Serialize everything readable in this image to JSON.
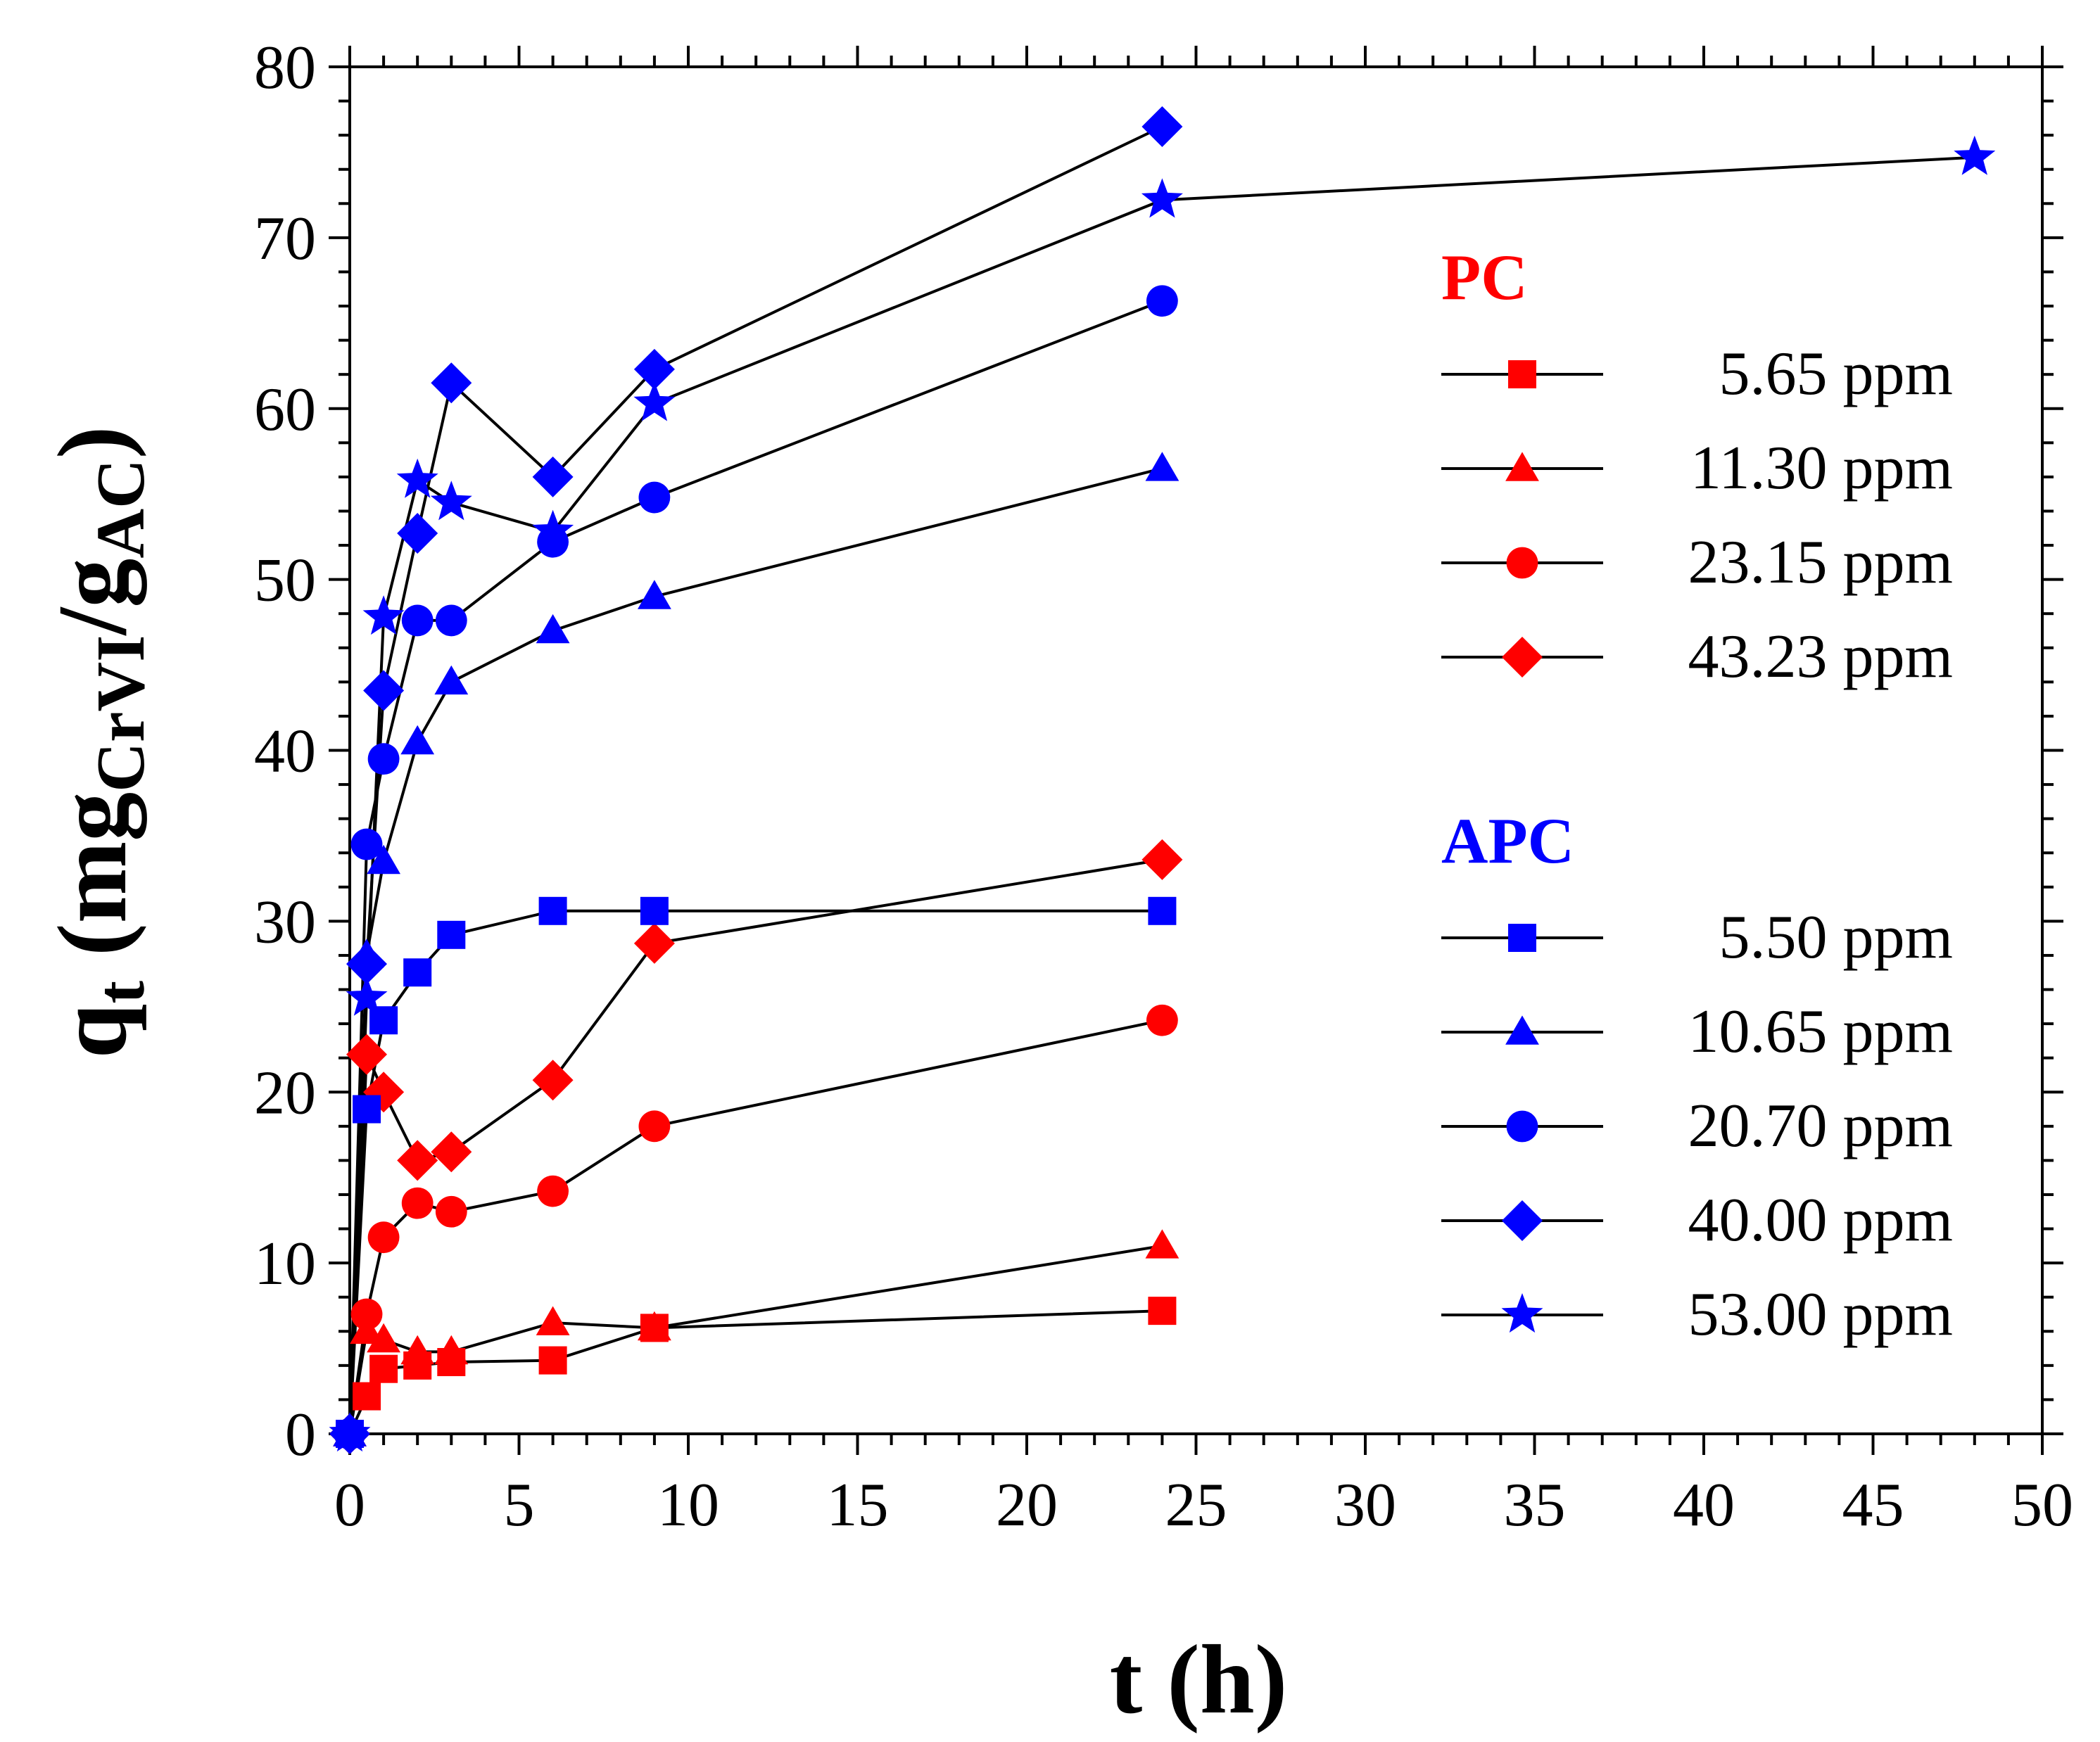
{
  "chart_data": {
    "type": "line",
    "title": "",
    "xlabel": "t (h)",
    "ylabel": {
      "base": "q",
      "sub_t": "t",
      "paren_open": " (mg",
      "sub_cr": "CrVI",
      "slash": "/g",
      "sub_ac": "AC",
      "paren_close": ")"
    },
    "xlim": [
      0,
      50
    ],
    "ylim": [
      0,
      80
    ],
    "x_ticks": [
      0,
      5,
      10,
      15,
      20,
      25,
      30,
      35,
      40,
      45,
      50
    ],
    "y_ticks": [
      0,
      10,
      20,
      30,
      40,
      50,
      60,
      70,
      80
    ],
    "grid": false,
    "legend_position": "right",
    "groups": [
      {
        "name": "PC",
        "color": "#ff0000"
      },
      {
        "name": "APC",
        "color": "#0000ff"
      }
    ],
    "series": [
      {
        "group": "PC",
        "name": "5.65 ppm",
        "marker": "square",
        "color": "#ff0000",
        "x": [
          0,
          0.5,
          1,
          2,
          3,
          6,
          9,
          24
        ],
        "y": [
          0,
          2.2,
          3.8,
          4.0,
          4.2,
          4.3,
          6.2,
          7.2
        ]
      },
      {
        "group": "PC",
        "name": "11.30 ppm",
        "marker": "triangle",
        "color": "#ff0000",
        "x": [
          0,
          0.5,
          1,
          2,
          3,
          6,
          9,
          24
        ],
        "y": [
          0,
          6.0,
          5.5,
          4.8,
          4.8,
          6.5,
          6.2,
          11.0
        ]
      },
      {
        "group": "PC",
        "name": "23.15 ppm",
        "marker": "circle",
        "color": "#ff0000",
        "x": [
          0,
          0.5,
          1,
          2,
          3,
          6,
          9,
          24
        ],
        "y": [
          0,
          7.0,
          11.5,
          13.5,
          13.0,
          14.2,
          18.0,
          24.2
        ]
      },
      {
        "group": "PC",
        "name": "43.23 ppm",
        "marker": "diamond",
        "color": "#ff0000",
        "x": [
          0,
          0.5,
          1,
          2,
          3,
          6,
          9,
          24
        ],
        "y": [
          0,
          22.2,
          20.0,
          16.0,
          16.5,
          20.7,
          28.7,
          33.6
        ]
      },
      {
        "group": "APC",
        "name": "5.50 ppm",
        "marker": "square",
        "color": "#0000ff",
        "x": [
          0,
          0.5,
          1,
          2,
          3,
          6,
          9,
          24
        ],
        "y": [
          0,
          19.0,
          24.2,
          27.0,
          29.2,
          30.6,
          30.6,
          30.6
        ]
      },
      {
        "group": "APC",
        "name": "10.65 ppm",
        "marker": "triangle",
        "color": "#0000ff",
        "x": [
          0,
          0.5,
          1,
          2,
          3,
          6,
          9,
          24
        ],
        "y": [
          0,
          28.0,
          33.5,
          40.5,
          44.0,
          47.0,
          49.0,
          56.5
        ]
      },
      {
        "group": "APC",
        "name": "20.70 ppm",
        "marker": "circle",
        "color": "#0000ff",
        "x": [
          0,
          0.5,
          1,
          2,
          3,
          6,
          9,
          24
        ],
        "y": [
          0,
          34.5,
          39.5,
          47.6,
          47.6,
          52.2,
          54.8,
          66.3
        ]
      },
      {
        "group": "APC",
        "name": "40.00 ppm",
        "marker": "diamond",
        "color": "#0000ff",
        "x": [
          0,
          0.5,
          1,
          2,
          3,
          6,
          9,
          24
        ],
        "y": [
          0,
          27.5,
          43.5,
          52.7,
          61.5,
          56.0,
          62.3,
          76.5
        ]
      },
      {
        "group": "APC",
        "name": "53.00 ppm",
        "marker": "star",
        "color": "#0000ff",
        "x": [
          0,
          0.5,
          1,
          2,
          3,
          6,
          9,
          24,
          48
        ],
        "y": [
          0,
          25.5,
          47.8,
          55.8,
          54.5,
          52.8,
          60.3,
          72.2,
          74.7
        ]
      }
    ]
  }
}
